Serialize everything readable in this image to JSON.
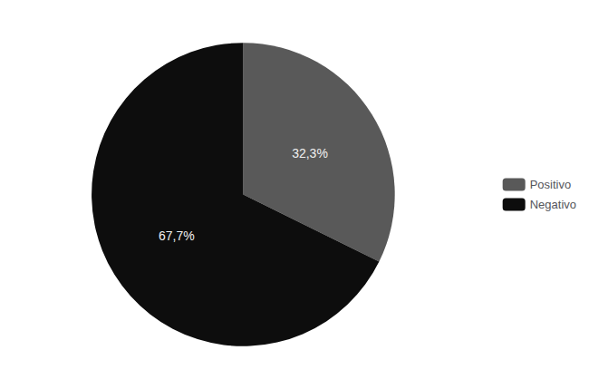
{
  "chart_data": {
    "type": "pie",
    "categories": [
      "Positivo",
      "Negativo"
    ],
    "values": [
      32.3,
      67.7
    ],
    "value_labels": [
      "32,3%",
      "67,7%"
    ],
    "colors": [
      "#595959",
      "#0d0d0d"
    ],
    "data_labels": true,
    "legend": "right"
  }
}
